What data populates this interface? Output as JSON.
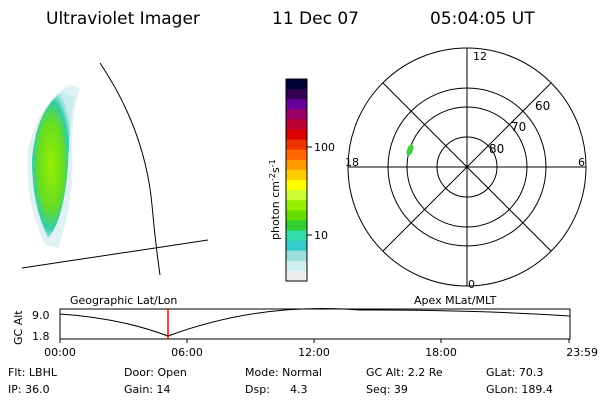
{
  "header": {
    "instrument": "Ultraviolet Imager",
    "date": "11 Dec 07",
    "time": "05:04:05 UT"
  },
  "colorbar": {
    "label": "photon cm",
    "label_sup1": "-2",
    "label_mid": "s",
    "label_sup2": "-1",
    "tick_100": "100",
    "tick_10": "10",
    "colors": [
      "#000033",
      "#330055",
      "#660099",
      "#990066",
      "#bb0033",
      "#dd0000",
      "#ee3300",
      "#ff6600",
      "#ff9900",
      "#ffcc00",
      "#ffff00",
      "#ccff33",
      "#99ee00",
      "#66dd00",
      "#33cc33",
      "#33ddaa",
      "#33cccc",
      "#99dddd",
      "#cceeee",
      "#eeeeee"
    ]
  },
  "polar_plot": {
    "mlt_labels": {
      "top": "12",
      "left": "18",
      "right": "6",
      "bottom": "0"
    },
    "lat_labels": [
      "60",
      "70",
      "80"
    ]
  },
  "timeline": {
    "left_title": "Geographic Lat/Lon",
    "right_title": "Apex MLat/MLT",
    "y_axis_label": "GC Alt",
    "y_ticks": [
      "9.0",
      "1.8"
    ],
    "x_ticks": [
      "00:00",
      "06:00",
      "12:00",
      "18:00",
      "23:59"
    ],
    "marker_color": "#ff0000"
  },
  "info": {
    "flt": "Flt: LBHL",
    "ip": "IP: 36.0",
    "door": "Door: Open",
    "gain": "Gain: 14",
    "mode": "Mode: Normal",
    "dsp_label": "Dsp:",
    "dsp_value": "4.3",
    "gc_alt": "GC Alt: 2.2 Re",
    "seq": "Seq: 39",
    "glat": "GLat: 70.3",
    "glon": "GLon: 189.4"
  }
}
